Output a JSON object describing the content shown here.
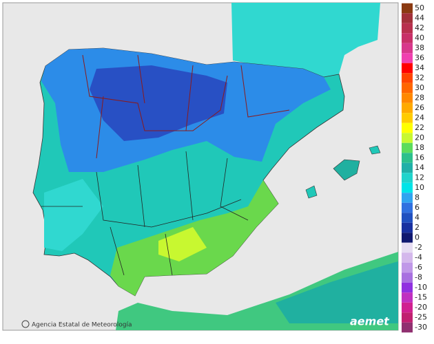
{
  "legend": {
    "items": [
      {
        "label": "50",
        "color": "#8b3a12"
      },
      {
        "label": "44",
        "color": "#a2303a"
      },
      {
        "label": "42",
        "color": "#b8304e"
      },
      {
        "label": "40",
        "color": "#c83068"
      },
      {
        "label": "38",
        "color": "#d8388c"
      },
      {
        "label": "36",
        "color": "#f040b0"
      },
      {
        "label": "34",
        "color": "#ff0000"
      },
      {
        "label": "32",
        "color": "#ff4400"
      },
      {
        "label": "30",
        "color": "#ff6600"
      },
      {
        "label": "28",
        "color": "#ff8800"
      },
      {
        "label": "26",
        "color": "#ffaa00"
      },
      {
        "label": "24",
        "color": "#ffcc00"
      },
      {
        "label": "22",
        "color": "#ffff00"
      },
      {
        "label": "20",
        "color": "#c8f830"
      },
      {
        "label": "18",
        "color": "#5cdc5c"
      },
      {
        "label": "16",
        "color": "#2cc08c"
      },
      {
        "label": "14",
        "color": "#20b0a8"
      },
      {
        "label": "12",
        "color": "#20d4cc"
      },
      {
        "label": "10",
        "color": "#00e4e8"
      },
      {
        "label": "8",
        "color": "#30a4f0"
      },
      {
        "label": "6",
        "color": "#3070e0"
      },
      {
        "label": "4",
        "color": "#2050c0"
      },
      {
        "label": "2",
        "color": "#1830a0"
      },
      {
        "label": "0",
        "color": "#101870"
      },
      {
        "label": "-2",
        "color": "#e6dcf2"
      },
      {
        "label": "-4",
        "color": "#d4b8ec"
      },
      {
        "label": "-6",
        "color": "#c098e8"
      },
      {
        "label": "-8",
        "color": "#a870e0"
      },
      {
        "label": "-10",
        "color": "#9030e0"
      },
      {
        "label": "-15",
        "color": "#c030c0"
      },
      {
        "label": "-20",
        "color": "#d02090"
      },
      {
        "label": "-25",
        "color": "#c02070"
      },
      {
        "label": "-30",
        "color": "#903070"
      }
    ]
  },
  "attribution": "Agencia Estatal de Meteorología",
  "logo": "aemet"
}
